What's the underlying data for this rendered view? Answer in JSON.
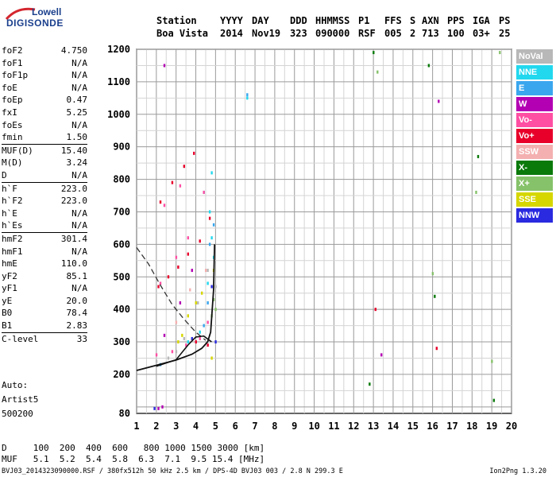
{
  "brand": {
    "line1": "Lowell",
    "line2": "DIGISONDE"
  },
  "header": {
    "cols": [
      {
        "h": "Station",
        "v": "Boa Vista"
      },
      {
        "h": "YYYY",
        "v": "2014"
      },
      {
        "h": "DAY",
        "v": "Nov19"
      },
      {
        "h": "DDD",
        "v": "323"
      },
      {
        "h": "HHMMSS",
        "v": "090000"
      },
      {
        "h": "P1",
        "v": "RSF"
      },
      {
        "h": "FFS",
        "v": "005"
      },
      {
        "h": "S",
        "v": "2"
      },
      {
        "h": "AXN",
        "v": "713"
      },
      {
        "h": "PPS",
        "v": "100"
      },
      {
        "h": "IGA",
        "v": "03+"
      },
      {
        "h": "PS",
        "v": "25"
      }
    ]
  },
  "params": [
    {
      "name": "foF2",
      "value": "4.750"
    },
    {
      "name": "foF1",
      "value": "N/A"
    },
    {
      "name": "foF1p",
      "value": "N/A"
    },
    {
      "name": "foE",
      "value": "N/A"
    },
    {
      "name": "foEp",
      "value": "0.47"
    },
    {
      "name": "fxI",
      "value": "5.25"
    },
    {
      "name": "foEs",
      "value": "N/A"
    },
    {
      "name": "fmin",
      "value": "1.50"
    },
    {
      "name": "MUF(D)",
      "value": "15.40"
    },
    {
      "name": "M(D)",
      "value": "3.24"
    },
    {
      "name": "D",
      "value": "N/A"
    },
    {
      "name": "h`F",
      "value": "223.0"
    },
    {
      "name": "h`F2",
      "value": "223.0"
    },
    {
      "name": "h`E",
      "value": "N/A"
    },
    {
      "name": "h`Es",
      "value": "N/A"
    },
    {
      "name": "hmF2",
      "value": "301.4"
    },
    {
      "name": "hmF1",
      "value": "N/A"
    },
    {
      "name": "hmE",
      "value": "110.0"
    },
    {
      "name": "yF2",
      "value": "85.1"
    },
    {
      "name": "yF1",
      "value": "N/A"
    },
    {
      "name": "yE",
      "value": "20.0"
    },
    {
      "name": "B0",
      "value": "78.4"
    },
    {
      "name": "B1",
      "value": "2.83"
    },
    {
      "name": "C-level",
      "value": "33"
    }
  ],
  "autoscale": {
    "line1": "Auto:",
    "line2": "Artist5",
    "line3": "500200"
  },
  "legend": [
    {
      "label": "NoVal",
      "color": "#b8b8b8"
    },
    {
      "label": "NNE",
      "color": "#22d8ee"
    },
    {
      "label": "E",
      "color": "#3aa6ee"
    },
    {
      "label": "W",
      "color": "#b300b3"
    },
    {
      "label": "Vo-",
      "color": "#ff4fa3"
    },
    {
      "label": "Vo+",
      "color": "#e8002a"
    },
    {
      "label": "SSW",
      "color": "#f4b0b0"
    },
    {
      "label": "X-",
      "color": "#0a7a0a"
    },
    {
      "label": "X+",
      "color": "#86c26a"
    },
    {
      "label": "SSE",
      "color": "#d6d600"
    },
    {
      "label": "NNW",
      "color": "#2a2ae0"
    }
  ],
  "chart_data": {
    "type": "scatter",
    "xlim": [
      1,
      20
    ],
    "ylim": [
      80,
      1200
    ],
    "x_ticks": [
      "1",
      "2",
      "3",
      "4",
      "5",
      "6",
      "7",
      "8",
      "9",
      "10",
      "11",
      "12",
      "13",
      "14",
      "15",
      "16",
      "17",
      "18",
      "19",
      "20"
    ],
    "y_ticks": [
      "80",
      "200",
      "300",
      "400",
      "500",
      "600",
      "700",
      "800",
      "900",
      "1000",
      "1100",
      "1200"
    ],
    "grid": true,
    "series": [
      {
        "name": "NoVal",
        "color": "#b8b8b8",
        "points": [
          [
            2.6,
            250
          ],
          [
            3.4,
            310
          ],
          [
            4.1,
            420
          ],
          [
            4.6,
            520
          ],
          [
            5.0,
            470
          ],
          [
            2.0,
            240
          ],
          [
            3.0,
            270
          ]
        ]
      },
      {
        "name": "NNE",
        "color": "#22d8ee",
        "points": [
          [
            4.7,
            700
          ],
          [
            4.8,
            620
          ],
          [
            4.9,
            560
          ],
          [
            4.6,
            480
          ],
          [
            3.6,
            300
          ],
          [
            4.4,
            760
          ],
          [
            6.6,
            1050
          ],
          [
            4.2,
            330
          ],
          [
            4.8,
            820
          ]
        ]
      },
      {
        "name": "E",
        "color": "#3aa6ee",
        "points": [
          [
            4.4,
            350
          ],
          [
            4.6,
            420
          ],
          [
            4.7,
            600
          ],
          [
            4.9,
            660
          ],
          [
            2.2,
            230
          ],
          [
            6.6,
            1060
          ]
        ]
      },
      {
        "name": "W",
        "color": "#b300b3",
        "points": [
          [
            2.4,
            320
          ],
          [
            3.2,
            420
          ],
          [
            3.8,
            520
          ],
          [
            2.1,
            95
          ],
          [
            2.3,
            100
          ],
          [
            2.4,
            1150
          ],
          [
            16.3,
            1040
          ],
          [
            13.4,
            260
          ]
        ]
      },
      {
        "name": "Vo-",
        "color": "#ff4fa3",
        "points": [
          [
            2.0,
            260
          ],
          [
            2.8,
            270
          ],
          [
            3.5,
            290
          ],
          [
            4.2,
            310
          ],
          [
            4.6,
            360
          ],
          [
            2.2,
            480
          ],
          [
            3.0,
            560
          ],
          [
            3.6,
            620
          ],
          [
            4.4,
            760
          ],
          [
            3.2,
            780
          ],
          [
            2.4,
            720
          ]
        ]
      },
      {
        "name": "Vo+",
        "color": "#e8002a",
        "points": [
          [
            2.1,
            470
          ],
          [
            2.6,
            500
          ],
          [
            3.1,
            530
          ],
          [
            3.6,
            570
          ],
          [
            4.2,
            610
          ],
          [
            4.7,
            680
          ],
          [
            2.2,
            730
          ],
          [
            2.8,
            790
          ],
          [
            3.4,
            840
          ],
          [
            3.9,
            880
          ],
          [
            4.0,
            300
          ],
          [
            4.6,
            290
          ],
          [
            13.1,
            400
          ],
          [
            16.2,
            280
          ]
        ]
      },
      {
        "name": "SSW",
        "color": "#f4b0b0",
        "points": [
          [
            3.0,
            360
          ],
          [
            3.7,
            460
          ],
          [
            4.5,
            520
          ]
        ]
      },
      {
        "name": "X-",
        "color": "#0a7a0a",
        "points": [
          [
            13.0,
            1190
          ],
          [
            15.8,
            1150
          ],
          [
            18.3,
            870
          ],
          [
            12.8,
            170
          ],
          [
            19.1,
            120
          ],
          [
            16.1,
            440
          ]
        ]
      },
      {
        "name": "X+",
        "color": "#86c26a",
        "points": [
          [
            4.9,
            430
          ],
          [
            4.8,
            380
          ],
          [
            5.0,
            400
          ],
          [
            19.4,
            1190
          ],
          [
            13.2,
            1130
          ],
          [
            19.0,
            240
          ],
          [
            16.0,
            510
          ],
          [
            18.2,
            760
          ]
        ]
      },
      {
        "name": "SSE",
        "color": "#d6d600",
        "points": [
          [
            3.3,
            320
          ],
          [
            3.6,
            380
          ],
          [
            4.0,
            420
          ],
          [
            4.3,
            450
          ],
          [
            3.1,
            300
          ],
          [
            4.8,
            250
          ],
          [
            4.9,
            520
          ]
        ]
      },
      {
        "name": "NNW",
        "color": "#2a2ae0",
        "points": [
          [
            4.8,
            470
          ],
          [
            3.8,
            310
          ],
          [
            1.9,
            95
          ],
          [
            5.0,
            300
          ]
        ]
      }
    ],
    "profile_solid": [
      [
        1,
        212
      ],
      [
        2,
        228
      ],
      [
        3,
        244
      ],
      [
        3.8,
        262
      ],
      [
        4.3,
        280
      ],
      [
        4.6,
        300
      ],
      [
        4.75,
        330
      ],
      [
        4.9,
        460
      ],
      [
        4.95,
        600
      ]
    ],
    "trace_solid": [
      [
        2.0,
        225
      ],
      [
        3.0,
        245
      ],
      [
        3.6,
        290
      ],
      [
        4.0,
        315
      ],
      [
        4.4,
        318
      ],
      [
        4.8,
        300
      ]
    ],
    "trace_dashed": [
      [
        1,
        590
      ],
      [
        1.6,
        540
      ],
      [
        2.2,
        475
      ],
      [
        2.8,
        415
      ],
      [
        3.4,
        370
      ],
      [
        4.0,
        330
      ],
      [
        4.5,
        305
      ]
    ]
  },
  "footer": {
    "row1": "D     100  200  400  600   800 1000 1500 3000 [km]",
    "row2": "MUF   5.1  5.2  5.4  5.8  6.3  7.1  9.5 15.4 [MHz]",
    "file": "BVJ03_2014323090000.RSF / 380fx512h 50 kHz 2.5 km / DPS-4D BVJ03 003 / 2.8 N 299.3 E",
    "version": "Ion2Png 1.3.20"
  }
}
